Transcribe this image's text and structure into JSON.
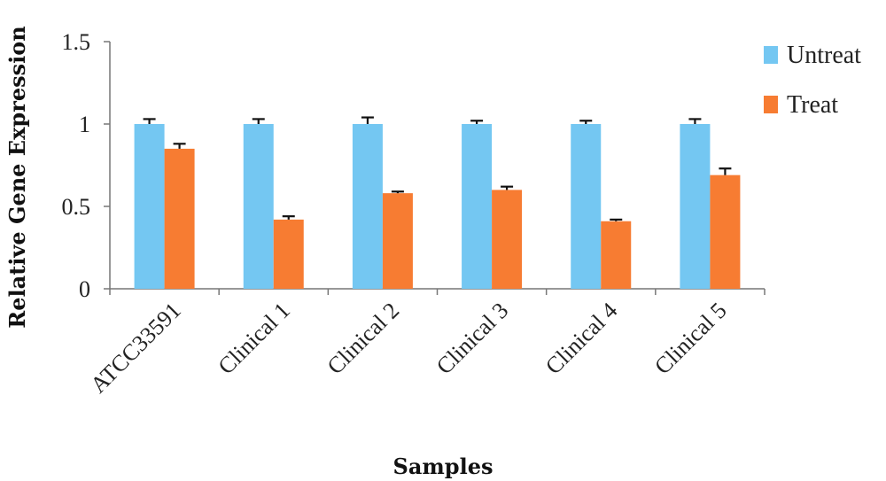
{
  "chart_data": {
    "type": "bar",
    "title": "",
    "xlabel": "Samples",
    "ylabel": "Relative Gene Expression",
    "ylim": [
      0,
      1.5
    ],
    "yticks": [
      0,
      0.5,
      1,
      1.5
    ],
    "ytick_labels": [
      "0",
      "0.5",
      "1",
      "1.5"
    ],
    "grid": false,
    "legend_position": "top-right",
    "categories": [
      "ATCC33591",
      "Clinical 1",
      "Clinical 2",
      "Clinical 3",
      "Clinical 4",
      "Clinical 5"
    ],
    "series": [
      {
        "name": "Untreat",
        "color": "#74c7f2",
        "values": [
          1.0,
          1.0,
          1.0,
          1.0,
          1.0,
          1.0
        ],
        "errors": [
          0.03,
          0.03,
          0.04,
          0.02,
          0.02,
          0.03
        ]
      },
      {
        "name": "Treat",
        "color": "#f77c32",
        "values": [
          0.85,
          0.42,
          0.58,
          0.6,
          0.41,
          0.69
        ],
        "errors": [
          0.03,
          0.02,
          0.01,
          0.02,
          0.01,
          0.04
        ]
      }
    ]
  }
}
